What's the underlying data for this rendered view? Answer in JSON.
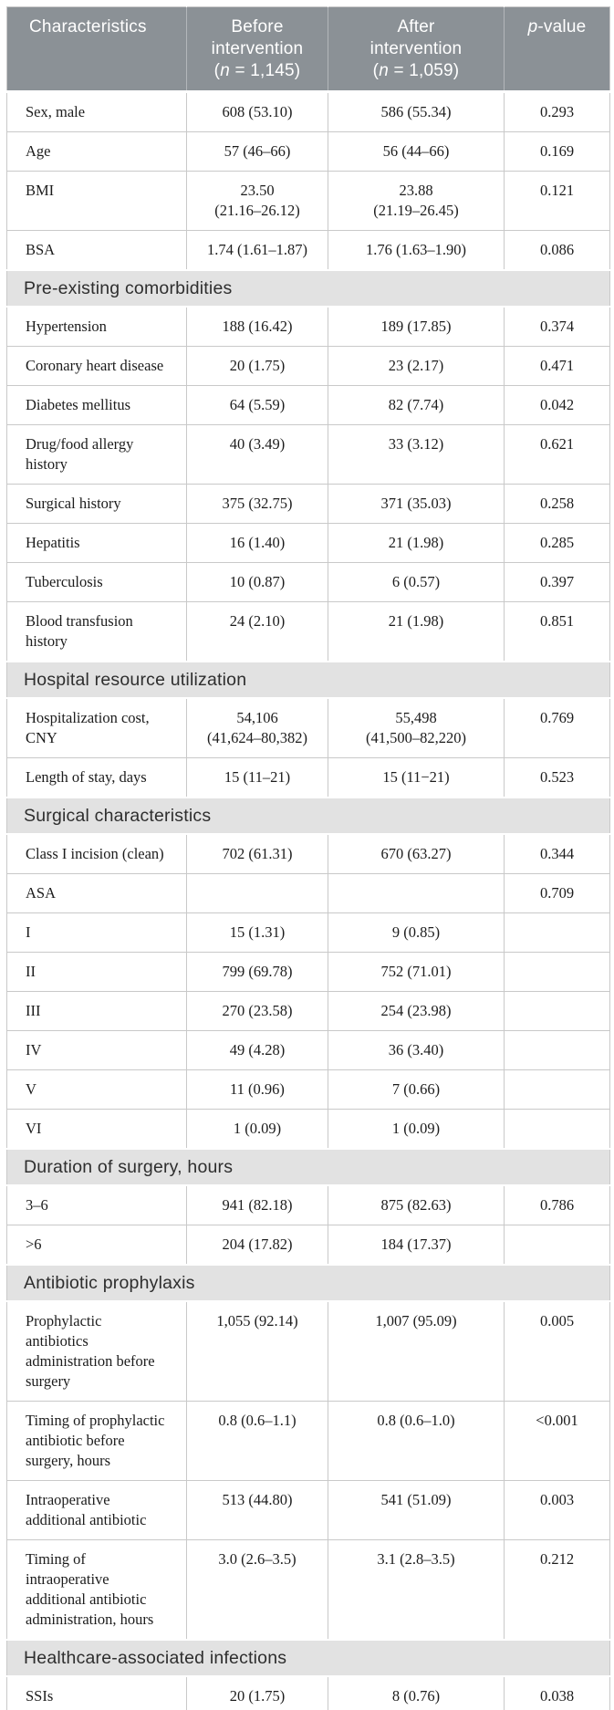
{
  "colors": {
    "header_bg": "#8b9196",
    "header_text": "#ffffff",
    "section_bg": "#e2e2e2",
    "section_text": "#2e2e2e",
    "body_text": "#1c1c1c",
    "grid_line": "#c9c9c9"
  },
  "table": {
    "header": {
      "characteristics": "Characteristics",
      "before": {
        "line1": "Before",
        "line2": "intervention",
        "n_open": "(",
        "n_symbol": "n",
        "n_rest": " = 1,145)"
      },
      "after": {
        "line1": "After",
        "line2": "intervention",
        "n_open": "(",
        "n_symbol": "n",
        "n_rest": " = 1,059)"
      },
      "p": {
        "italic": "p",
        "rest": "-value"
      }
    },
    "rows": [
      {
        "type": "data",
        "label": "Sex, male",
        "before": "608 (53.10)",
        "after": "586 (55.34)",
        "p": "0.293"
      },
      {
        "type": "data",
        "label": "Age",
        "before": "57 (46–66)",
        "after": "56 (44–66)",
        "p": "0.169"
      },
      {
        "type": "data",
        "label": "BMI",
        "before": "23.50\n(21.16–26.12)",
        "after": "23.88\n(21.19–26.45)",
        "p": "0.121"
      },
      {
        "type": "data",
        "label": "BSA",
        "before": "1.74 (1.61–1.87)",
        "after": "1.76 (1.63–1.90)",
        "p": "0.086"
      },
      {
        "type": "section",
        "label": "Pre-existing comorbidities"
      },
      {
        "type": "data",
        "label": "Hypertension",
        "before": "188 (16.42)",
        "after": "189 (17.85)",
        "p": "0.374"
      },
      {
        "type": "data",
        "label": "Coronary heart disease",
        "before": "20 (1.75)",
        "after": "23 (2.17)",
        "p": "0.471"
      },
      {
        "type": "data",
        "label": "Diabetes mellitus",
        "before": "64 (5.59)",
        "after": "82 (7.74)",
        "p": "0.042"
      },
      {
        "type": "data",
        "label": "Drug/food allergy\nhistory",
        "before": "40 (3.49)",
        "after": "33 (3.12)",
        "p": "0.621"
      },
      {
        "type": "data",
        "label": "Surgical history",
        "before": "375 (32.75)",
        "after": "371 (35.03)",
        "p": "0.258"
      },
      {
        "type": "data",
        "label": "Hepatitis",
        "before": "16 (1.40)",
        "after": "21 (1.98)",
        "p": "0.285"
      },
      {
        "type": "data",
        "label": "Tuberculosis",
        "before": "10 (0.87)",
        "after": "6 (0.57)",
        "p": "0.397"
      },
      {
        "type": "data",
        "label": "Blood transfusion\nhistory",
        "before": "24 (2.10)",
        "after": "21 (1.98)",
        "p": "0.851"
      },
      {
        "type": "section",
        "label": "Hospital resource utilization"
      },
      {
        "type": "data",
        "label": "Hospitalization cost,\nCNY",
        "before": "54,106\n(41,624–80,382)",
        "after": "55,498\n(41,500–82,220)",
        "p": "0.769"
      },
      {
        "type": "data",
        "label": "Length of stay, days",
        "before": "15 (11–21)",
        "after": "15 (11−21)",
        "p": "0.523"
      },
      {
        "type": "section",
        "label": "Surgical characteristics"
      },
      {
        "type": "data",
        "label": "Class I incision (clean)",
        "before": "702 (61.31)",
        "after": "670 (63.27)",
        "p": "0.344"
      },
      {
        "type": "data",
        "label": "ASA",
        "before": "",
        "after": "",
        "p": "0.709"
      },
      {
        "type": "data",
        "label": "I",
        "before": "15 (1.31)",
        "after": "9 (0.85)",
        "p": ""
      },
      {
        "type": "data",
        "label": "II",
        "before": "799 (69.78)",
        "after": "752 (71.01)",
        "p": ""
      },
      {
        "type": "data",
        "label": "III",
        "before": "270 (23.58)",
        "after": "254 (23.98)",
        "p": ""
      },
      {
        "type": "data",
        "label": "IV",
        "before": "49 (4.28)",
        "after": "36 (3.40)",
        "p": ""
      },
      {
        "type": "data",
        "label": "V",
        "before": "11 (0.96)",
        "after": "7 (0.66)",
        "p": ""
      },
      {
        "type": "data",
        "label": "VI",
        "before": "1 (0.09)",
        "after": "1 (0.09)",
        "p": ""
      },
      {
        "type": "section",
        "label": "Duration of surgery, hours"
      },
      {
        "type": "data",
        "label": "3–6",
        "before": "941 (82.18)",
        "after": "875 (82.63)",
        "p": "0.786"
      },
      {
        "type": "data",
        "label": ">6",
        "before": "204 (17.82)",
        "after": "184 (17.37)",
        "p": ""
      },
      {
        "type": "section",
        "label": "Antibiotic prophylaxis"
      },
      {
        "type": "data",
        "label": "Prophylactic\nantibiotics\nadministration before\nsurgery",
        "before": "1,055 (92.14)",
        "after": "1,007 (95.09)",
        "p": "0.005"
      },
      {
        "type": "data",
        "label": "Timing of prophylactic\nantibiotic before\nsurgery, hours",
        "before": "0.8 (0.6–1.1)",
        "after": "0.8 (0.6–1.0)",
        "p": "<0.001"
      },
      {
        "type": "data",
        "label": "Intraoperative\nadditional antibiotic",
        "before": "513 (44.80)",
        "after": "541 (51.09)",
        "p": "0.003"
      },
      {
        "type": "data",
        "label": "Timing of\nintraoperative\nadditional antibiotic\nadministration, hours",
        "before": "3.0 (2.6–3.5)",
        "after": "3.1 (2.8–3.5)",
        "p": "0.212"
      },
      {
        "type": "section",
        "label": "Healthcare-associated infections"
      },
      {
        "type": "data",
        "label": "SSIs",
        "before": "20 (1.75)",
        "after": "8 (0.76)",
        "p": "0.038"
      }
    ]
  }
}
